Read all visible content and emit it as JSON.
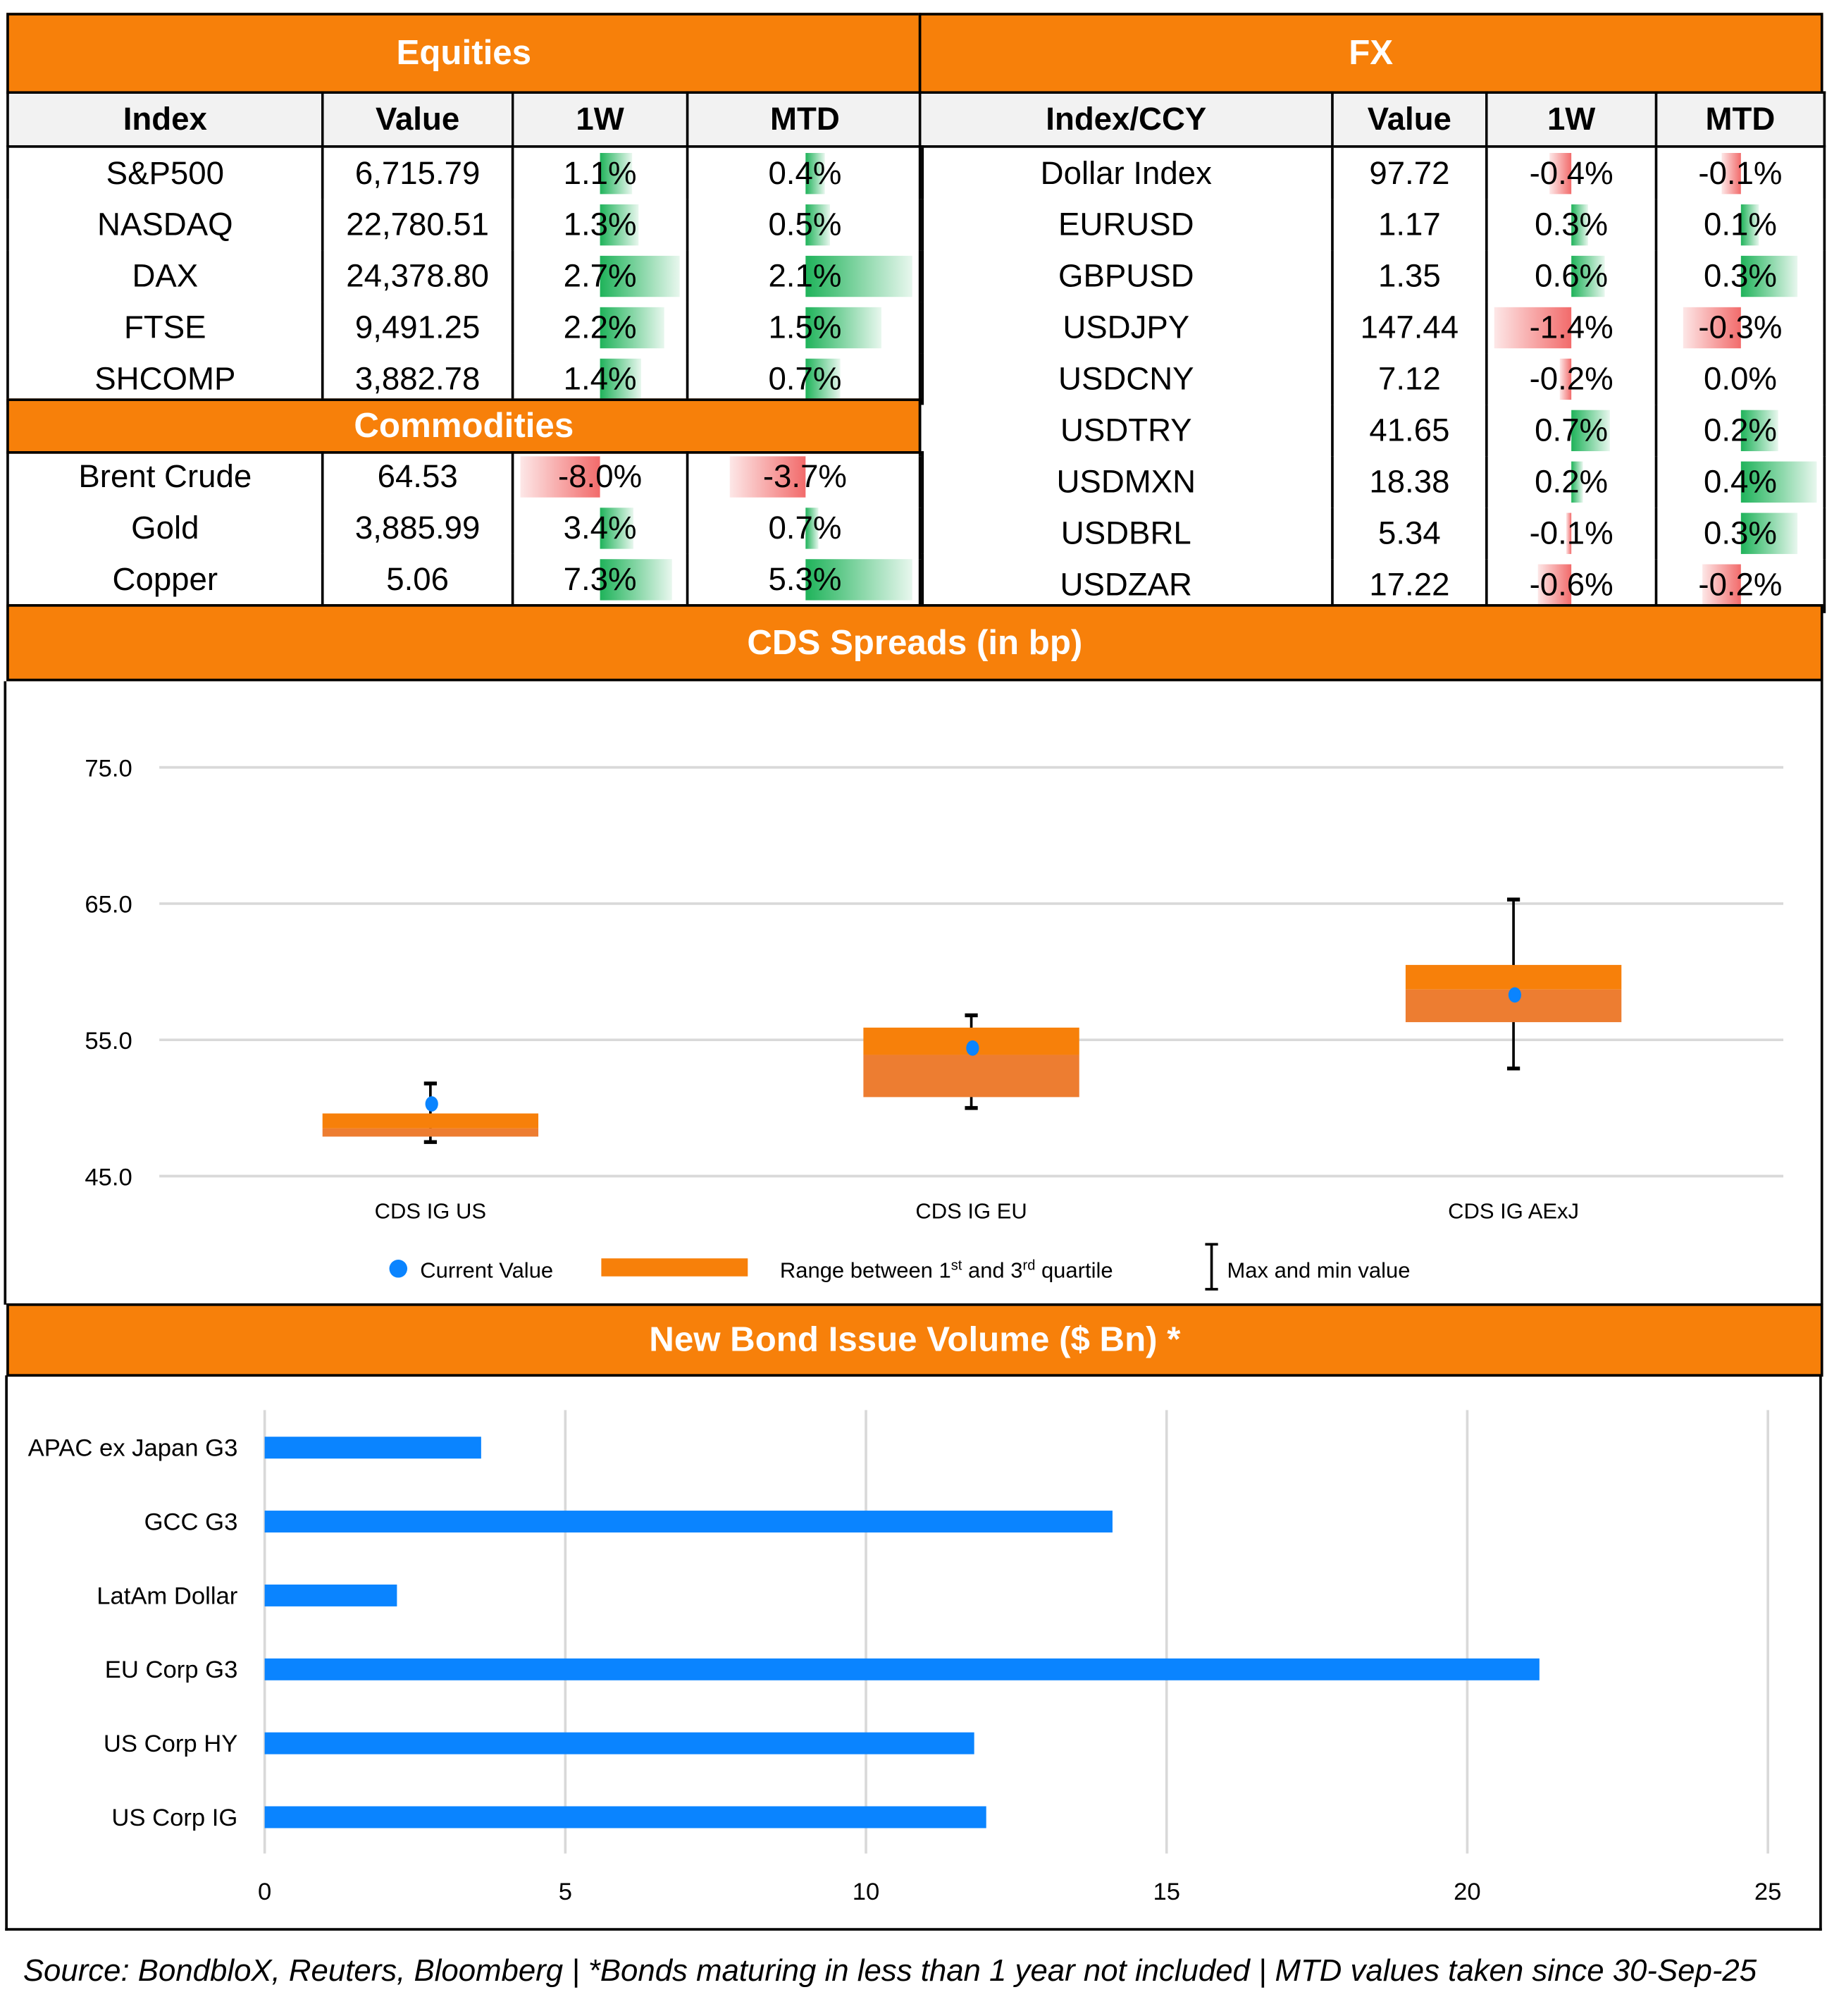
{
  "equities": {
    "title": "Equities",
    "headers": [
      "Index",
      "Value",
      "1W",
      "MTD"
    ],
    "rows": [
      {
        "name": "S&P500",
        "value": "6,715.79",
        "w1": "1.1%",
        "mtd": "0.4%"
      },
      {
        "name": "NASDAQ",
        "value": "22,780.51",
        "w1": "1.3%",
        "mtd": "0.5%"
      },
      {
        "name": "DAX",
        "value": "24,378.80",
        "w1": "2.7%",
        "mtd": "2.1%"
      },
      {
        "name": "FTSE",
        "value": "9,491.25",
        "w1": "2.2%",
        "mtd": "1.5%"
      },
      {
        "name": "SHCOMP",
        "value": "3,882.78",
        "w1": "1.4%",
        "mtd": "0.7%"
      }
    ]
  },
  "commodities": {
    "title": "Commodities",
    "rows": [
      {
        "name": "Brent Crude",
        "value": "64.53",
        "w1": "-8.0%",
        "mtd": "-3.7%"
      },
      {
        "name": "Gold",
        "value": "3,885.99",
        "w1": "3.4%",
        "mtd": "0.7%"
      },
      {
        "name": "Copper",
        "value": "5.06",
        "w1": "7.3%",
        "mtd": "5.3%"
      }
    ]
  },
  "fx": {
    "title": "FX",
    "headers": [
      "Index/CCY",
      "Value",
      "1W",
      "MTD"
    ],
    "rows": [
      {
        "name": "Dollar Index",
        "value": "97.72",
        "w1": "-0.4%",
        "mtd": "-0.1%"
      },
      {
        "name": "EURUSD",
        "value": "1.17",
        "w1": "0.3%",
        "mtd": "0.1%"
      },
      {
        "name": "GBPUSD",
        "value": "1.35",
        "w1": "0.6%",
        "mtd": "0.3%"
      },
      {
        "name": "USDJPY",
        "value": "147.44",
        "w1": "-1.4%",
        "mtd": "-0.3%"
      },
      {
        "name": "USDCNY",
        "value": "7.12",
        "w1": "-0.2%",
        "mtd": "0.0%"
      },
      {
        "name": "USDTRY",
        "value": "41.65",
        "w1": "0.7%",
        "mtd": "0.2%"
      },
      {
        "name": "USDMXN",
        "value": "18.38",
        "w1": "0.2%",
        "mtd": "0.4%"
      },
      {
        "name": "USDBRL",
        "value": "5.34",
        "w1": "-0.1%",
        "mtd": "0.3%"
      },
      {
        "name": "USDZAR",
        "value": "17.22",
        "w1": "-0.6%",
        "mtd": "-0.2%"
      }
    ]
  },
  "colors": {
    "orange": "#f7800a",
    "orange_dark": "#ed7d31",
    "blue": "#0a84ff",
    "green": "#1fb35a",
    "red": "#f26b6b"
  },
  "chart_data": [
    {
      "type": "box",
      "title": "CDS Spreads (in bp)",
      "ylim": [
        45,
        75
      ],
      "yticks": [
        "45.0",
        "55.0",
        "65.0",
        "75.0"
      ],
      "categories": [
        "CDS IG US",
        "CDS IG EU",
        "CDS IG AExJ"
      ],
      "current": [
        50.3,
        54.4,
        58.3
      ],
      "q1": [
        47.9,
        50.8,
        56.3
      ],
      "median": [
        48.5,
        53.9,
        58.7
      ],
      "q3": [
        49.6,
        55.9,
        60.5
      ],
      "min": [
        47.5,
        50.0,
        52.9
      ],
      "max": [
        51.8,
        56.8,
        65.3
      ],
      "legend": {
        "current": "Current Value",
        "range": [
          "Range between 1",
          "st",
          " and 3",
          "rd",
          " quartile"
        ],
        "minmax": "Max and min value"
      }
    },
    {
      "type": "bar",
      "orientation": "horizontal",
      "title": "New Bond Issue Volume ($ Bn) *",
      "categories": [
        "APAC ex Japan G3",
        "GCC G3",
        "LatAm Dollar",
        "EU Corp G3",
        "US Corp HY",
        "US Corp IG"
      ],
      "values": [
        3.6,
        14.1,
        2.2,
        21.2,
        11.8,
        12.0
      ],
      "xlim": [
        0,
        25
      ],
      "xticks": [
        "0",
        "5",
        "10",
        "15",
        "20",
        "25"
      ]
    }
  ],
  "source": "Source: BondbloX, Reuters, Bloomberg | *Bonds maturing in less than 1 year not included | MTD values taken since 30-Sep-25"
}
